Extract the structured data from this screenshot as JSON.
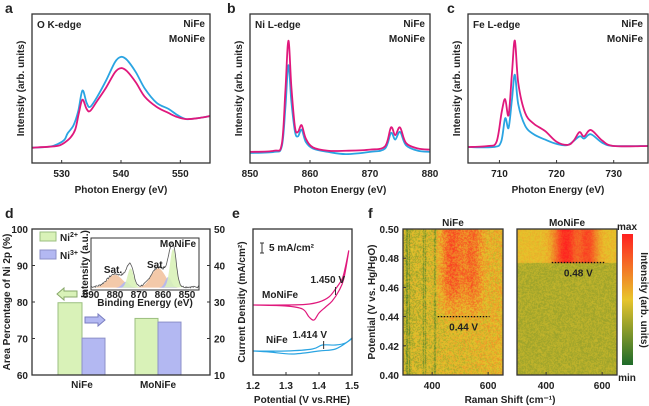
{
  "colors": {
    "NiFe": "#2aa4e2",
    "MoNiFe": "#e0187c",
    "ni2": "#d9f2b8",
    "ni3": "#b3b8f2",
    "sat": "#f2c3a0"
  },
  "chart_data": [
    {
      "panel": "a",
      "type": "line",
      "annotation": "O K-edge",
      "xlabel": "Photon Energy (eV)",
      "ylabel": "Intensity (arb. units)",
      "xlim": [
        525,
        555
      ],
      "ylim": [
        -0.13,
        1.33
      ],
      "xticks": [
        530,
        540,
        550
      ],
      "series": [
        {
          "name": "NiFe",
          "points": [
            [
              525,
              0.02
            ],
            [
              528,
              0.03
            ],
            [
              529.5,
              0.06
            ],
            [
              530.5,
              0.1
            ],
            [
              531,
              0.16
            ],
            [
              532,
              0.24
            ],
            [
              532.8,
              0.38
            ],
            [
              533.5,
              0.58
            ],
            [
              534.2,
              0.46
            ],
            [
              534.8,
              0.42
            ],
            [
              536,
              0.52
            ],
            [
              537.5,
              0.68
            ],
            [
              539,
              0.86
            ],
            [
              540,
              0.91
            ],
            [
              541,
              0.88
            ],
            [
              542.5,
              0.76
            ],
            [
              544,
              0.6
            ],
            [
              546,
              0.46
            ],
            [
              548,
              0.4
            ],
            [
              549.5,
              0.34
            ],
            [
              551,
              0.3
            ],
            [
              553,
              0.31
            ],
            [
              555,
              0.33
            ]
          ]
        },
        {
          "name": "MoNiFe",
          "points": [
            [
              525,
              0.02
            ],
            [
              528,
              0.03
            ],
            [
              529.5,
              0.04
            ],
            [
              530.5,
              0.07
            ],
            [
              531.5,
              0.12
            ],
            [
              532.3,
              0.2
            ],
            [
              532.9,
              0.36
            ],
            [
              533.5,
              0.49
            ],
            [
              534.2,
              0.4
            ],
            [
              534.8,
              0.38
            ],
            [
              536,
              0.48
            ],
            [
              537.5,
              0.61
            ],
            [
              539,
              0.76
            ],
            [
              540,
              0.8
            ],
            [
              541,
              0.77
            ],
            [
              542.5,
              0.66
            ],
            [
              544,
              0.52
            ],
            [
              546,
              0.42
            ],
            [
              548,
              0.36
            ],
            [
              549.5,
              0.32
            ],
            [
              551,
              0.3
            ],
            [
              553,
              0.31
            ],
            [
              555,
              0.33
            ]
          ]
        }
      ]
    },
    {
      "panel": "b",
      "type": "line",
      "annotation": "Ni L-edge",
      "xlabel": "Photon Energy (eV)",
      "ylabel": "Intensity (arb. units)",
      "xlim": [
        850,
        880
      ],
      "ylim": [
        -0.1,
        1.24
      ],
      "xticks": [
        850,
        860,
        870,
        880
      ],
      "series": [
        {
          "name": "NiFe",
          "points": [
            [
              850,
              -0.01
            ],
            [
              854,
              0
            ],
            [
              855.3,
              0.05
            ],
            [
              855.9,
              0.4
            ],
            [
              856.4,
              0.78
            ],
            [
              856.9,
              0.45
            ],
            [
              857.5,
              0.18
            ],
            [
              858,
              0.14
            ],
            [
              858.6,
              0.2
            ],
            [
              859.3,
              0.09
            ],
            [
              860.5,
              0.03
            ],
            [
              863,
              0
            ],
            [
              866,
              -0.02
            ],
            [
              870,
              0
            ],
            [
              872.5,
              0.03
            ],
            [
              873.5,
              0.17
            ],
            [
              874.2,
              0.11
            ],
            [
              875,
              0.18
            ],
            [
              876,
              0.06
            ],
            [
              878,
              0.01
            ],
            [
              880,
              0
            ]
          ]
        },
        {
          "name": "MoNiFe",
          "points": [
            [
              850,
              0
            ],
            [
              854,
              0.01
            ],
            [
              855.3,
              0.07
            ],
            [
              855.9,
              0.55
            ],
            [
              856.4,
              1.0
            ],
            [
              856.9,
              0.58
            ],
            [
              857.5,
              0.22
            ],
            [
              858,
              0.18
            ],
            [
              858.6,
              0.24
            ],
            [
              859.3,
              0.12
            ],
            [
              860.5,
              0.04
            ],
            [
              863,
              0.01
            ],
            [
              866,
              0.01
            ],
            [
              870,
              0.02
            ],
            [
              872.5,
              0.05
            ],
            [
              873.5,
              0.22
            ],
            [
              874.2,
              0.15
            ],
            [
              875,
              0.22
            ],
            [
              876,
              0.08
            ],
            [
              878,
              0.03
            ],
            [
              880,
              0.02
            ]
          ]
        }
      ]
    },
    {
      "panel": "c",
      "type": "line",
      "annotation": "Fe L-edge",
      "xlabel": "Photon Energy (eV)",
      "ylabel": "Intensity (arb. units)",
      "xlim": [
        704.5,
        736
      ],
      "ylim": [
        -0.15,
        1.25
      ],
      "xticks": [
        710,
        720,
        730
      ],
      "series": [
        {
          "name": "NiFe",
          "points": [
            [
              704.5,
              0
            ],
            [
              709,
              0
            ],
            [
              710.3,
              0.05
            ],
            [
              711,
              0.27
            ],
            [
              711.6,
              0.18
            ],
            [
              712.2,
              0.45
            ],
            [
              712.7,
              0.68
            ],
            [
              713.3,
              0.4
            ],
            [
              714.5,
              0.2
            ],
            [
              716,
              0.12
            ],
            [
              718,
              0.07
            ],
            [
              720,
              0.03
            ],
            [
              722,
              0.02
            ],
            [
              724,
              0.1
            ],
            [
              724.8,
              0.08
            ],
            [
              726,
              0.12
            ],
            [
              728,
              0.04
            ],
            [
              730,
              0.01
            ],
            [
              736,
              0.01
            ]
          ]
        },
        {
          "name": "MoNiFe",
          "points": [
            [
              704.5,
              0
            ],
            [
              708,
              0.01
            ],
            [
              709.5,
              0.05
            ],
            [
              710.4,
              0.33
            ],
            [
              711,
              0.45
            ],
            [
              711.6,
              0.3
            ],
            [
              712.2,
              0.7
            ],
            [
              712.7,
              1.0
            ],
            [
              713.3,
              0.6
            ],
            [
              714.5,
              0.32
            ],
            [
              716,
              0.22
            ],
            [
              718,
              0.15
            ],
            [
              720,
              0.05
            ],
            [
              722,
              0.02
            ],
            [
              723,
              0.06
            ],
            [
              724,
              0.14
            ],
            [
              724.8,
              0.1
            ],
            [
              726,
              0.16
            ],
            [
              728,
              0.06
            ],
            [
              730,
              0.01
            ],
            [
              736,
              0.01
            ]
          ]
        }
      ]
    },
    {
      "panel": "d",
      "type": "bar",
      "ylabel": "Area Percentage of Ni 2p (%)",
      "categories": [
        "NiFe",
        "MoNiFe"
      ],
      "ylim_left": [
        60,
        100
      ],
      "yticks_left": [
        60,
        70,
        80,
        90,
        100
      ],
      "ylim_right": [
        10,
        50
      ],
      "yticks_right": [
        10,
        20,
        30,
        40,
        50
      ],
      "series": [
        {
          "name": "Ni",
          "sup": "2+",
          "axis": "left",
          "values": [
            79.8,
            75.5
          ]
        },
        {
          "name": "Ni",
          "sup": "3+",
          "axis": "right",
          "values": [
            20.1,
            24.5
          ]
        }
      ],
      "inset": {
        "label": "MoNiFe",
        "xlabel": "Binding Energy (eV)",
        "ylabel": "Intensity (a.u.)",
        "xlim": [
          890,
          845
        ],
        "xticks": [
          890,
          880,
          870,
          860,
          850
        ],
        "annotations": [
          {
            "text": "Sat.",
            "x": 880
          },
          {
            "text": "Sat.",
            "x": 862
          }
        ],
        "components": [
          {
            "type": "sat",
            "center": 880,
            "height": 0.3,
            "width": 3.2
          },
          {
            "type": "ni3",
            "center": 875.5,
            "height": 0.14,
            "width": 1.5
          },
          {
            "type": "ni2",
            "center": 873.5,
            "height": 0.45,
            "width": 1.3
          },
          {
            "type": "sat",
            "center": 862,
            "height": 0.45,
            "width": 3.0
          },
          {
            "type": "ni3",
            "center": 857.8,
            "height": 0.25,
            "width": 1.3
          },
          {
            "type": "ni2",
            "center": 855.8,
            "height": 0.9,
            "width": 1.3
          }
        ]
      }
    },
    {
      "panel": "e",
      "type": "line",
      "xlabel": "Potential (V vs.RHE)",
      "ylabel": "Current Density (mA/cm²)",
      "xlim": [
        1.2,
        1.5
      ],
      "xticks": [
        1.2,
        1.3,
        1.4,
        1.5
      ],
      "ylim": [
        0,
        73
      ],
      "scale_bar": {
        "value": 5,
        "label": "5 mA/cm²"
      },
      "series": [
        {
          "name": "MoNiFe",
          "peak_label": "1.450 V",
          "peak_x": 1.45,
          "points": [
            [
              1.2,
              35
            ],
            [
              1.3,
              35
            ],
            [
              1.36,
              35.3
            ],
            [
              1.4,
              36.5
            ],
            [
              1.43,
              39
            ],
            [
              1.45,
              43
            ],
            [
              1.47,
              48
            ],
            [
              1.48,
              54
            ],
            [
              1.49,
              62
            ],
            [
              1.475,
              48
            ],
            [
              1.46,
              42
            ],
            [
              1.44,
              37
            ],
            [
              1.42,
              34
            ],
            [
              1.4,
              31
            ],
            [
              1.385,
              27.5
            ],
            [
              1.37,
              29
            ],
            [
              1.35,
              33
            ],
            [
              1.3,
              34.5
            ],
            [
              1.2,
              35
            ]
          ]
        },
        {
          "name": "NiFe",
          "peak_label": "1.414 V",
          "peak_x": 1.414,
          "points": [
            [
              1.2,
              12
            ],
            [
              1.3,
              12
            ],
            [
              1.38,
              13
            ],
            [
              1.41,
              15
            ],
            [
              1.45,
              15
            ],
            [
              1.48,
              16
            ],
            [
              1.5,
              18.5
            ],
            [
              1.49,
              17
            ],
            [
              1.45,
              13
            ],
            [
              1.4,
              12
            ],
            [
              1.32,
              10.5
            ],
            [
              1.25,
              11.5
            ],
            [
              1.2,
              12
            ]
          ]
        }
      ]
    },
    {
      "panel": "f",
      "type": "heatmap",
      "xlabel": "Raman Shift (cm⁻¹)",
      "ylabel": "Potential (V vs. Hg/HgO)",
      "xlim": [
        296,
        653
      ],
      "xticks": [
        400,
        600
      ],
      "ylim": [
        0.4,
        0.5
      ],
      "yticks": [
        "0.40",
        "0.42",
        "0.44",
        "0.46",
        "0.48",
        "0.50"
      ],
      "colorbar": {
        "label": "Intensity (arb. units)",
        "max": "max",
        "min": "min",
        "colors": [
          "#1e6b2a",
          "#e8c52c",
          "#ff2020"
        ]
      },
      "maps": [
        {
          "title": "NiFe",
          "onset": 0.44,
          "onset_label": "0.44 V",
          "bands": [
            470,
            545
          ],
          "line_x": [
            420,
            605
          ]
        },
        {
          "title": "MoNiFe",
          "onset": 0.477,
          "onset_label": "0.48 V",
          "bands": [
            470,
            550
          ],
          "line_x": [
            420,
            610
          ]
        }
      ]
    }
  ]
}
